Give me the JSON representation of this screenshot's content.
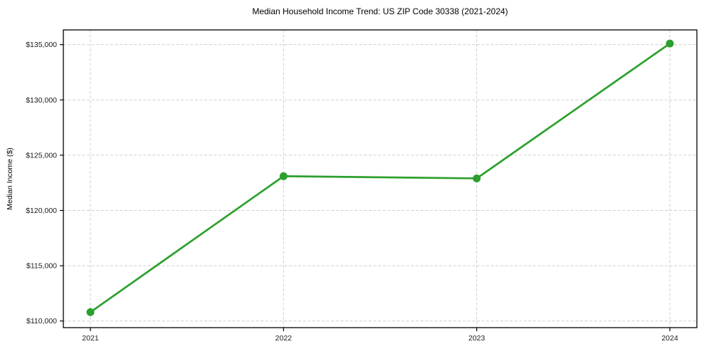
{
  "chart_data": {
    "type": "line",
    "title": "Median Household Income Trend: US ZIP Code 30338 (2021-2024)",
    "xlabel": "",
    "ylabel": "Median Income ($)",
    "x": [
      2021,
      2022,
      2023,
      2024
    ],
    "x_tick_labels": [
      "2021",
      "2022",
      "2023",
      "2024"
    ],
    "series": [
      {
        "values": [
          110800,
          123100,
          122900,
          135100
        ],
        "color": "#2ca02c",
        "marker": "circle",
        "line_width": 2.7,
        "marker_radius": 5.5
      }
    ],
    "y_ticks": [
      110000,
      115000,
      120000,
      125000,
      130000,
      135000
    ],
    "y_tick_labels": [
      "$110,000",
      "$115,000",
      "$120,000",
      "$125,000",
      "$130,000",
      "$135,000"
    ],
    "ylim": [
      109400,
      136330
    ],
    "xlim": [
      2020.86,
      2024.14
    ],
    "grid": true,
    "legend": "none",
    "colors": {
      "grid": "#cfcfcf",
      "frame": "#000000",
      "background": "#ffffff",
      "text": "#1a1a1a"
    }
  }
}
